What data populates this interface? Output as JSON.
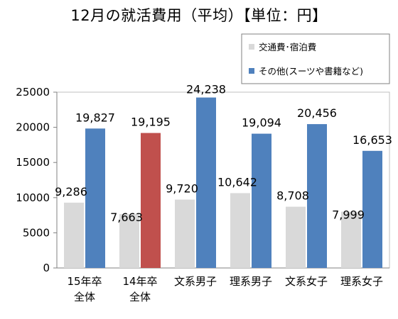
{
  "chart_data": {
    "type": "bar",
    "title": "12月の就活費用（平均）【単位：円】",
    "categories": [
      [
        "15年卒",
        "全体"
      ],
      [
        "14年卒",
        "全体"
      ],
      [
        "文系男子"
      ],
      [
        "理系男子"
      ],
      [
        "文系女子"
      ],
      [
        "理系女子"
      ]
    ],
    "series": [
      {
        "name": "交通費･宿泊費",
        "values": [
          9286,
          7663,
          9720,
          10642,
          8708,
          7999
        ],
        "labels": [
          "9,286",
          "7,663",
          "9,720",
          "10,642",
          "8,708",
          "7,999"
        ],
        "color": "#d9d9d9"
      },
      {
        "name": "その他(スーツや書籍など)",
        "values": [
          19827,
          19195,
          24238,
          19094,
          20456,
          16653
        ],
        "labels": [
          "19,827",
          "19,195",
          "24,238",
          "19,094",
          "20,456",
          "16,653"
        ],
        "color": "#4f81bd",
        "highlight": {
          "index": 1,
          "color": "#c0504d"
        }
      }
    ],
    "y_ticks": [
      "0",
      "5000",
      "10000",
      "15000",
      "20000",
      "25000"
    ],
    "ylim": [
      0,
      25000
    ],
    "grid": false,
    "legend_position": "top-right"
  }
}
